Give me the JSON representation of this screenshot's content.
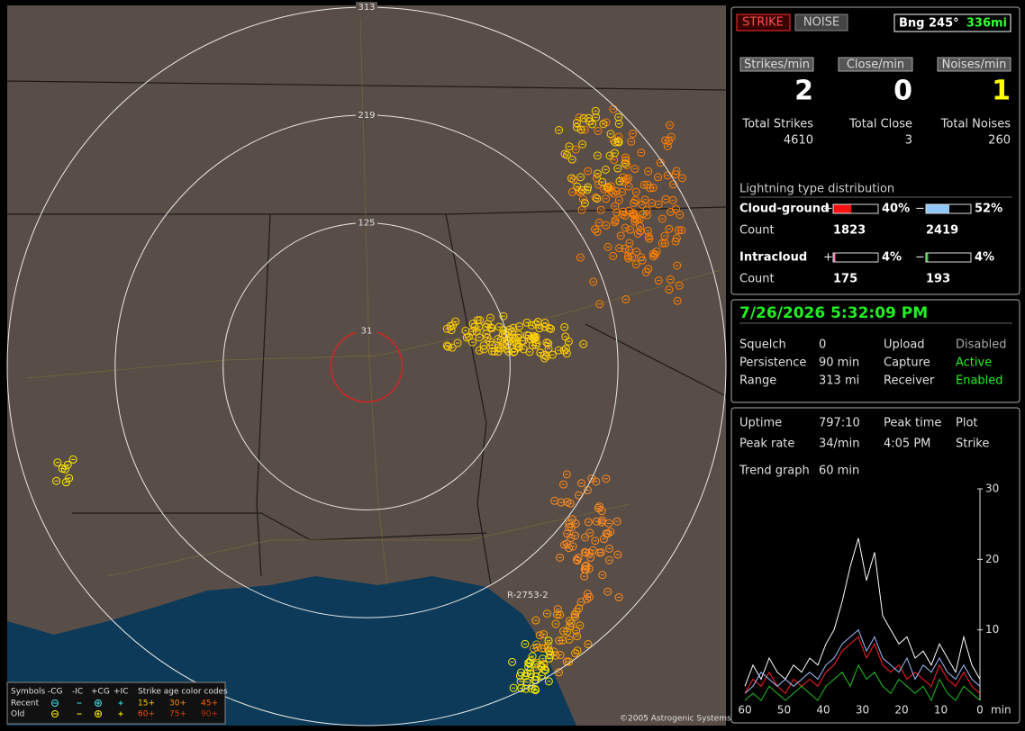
{
  "map": {
    "range_rings": [
      313,
      219,
      125,
      31
    ],
    "route_label": "R-2753-2",
    "legend": {
      "symbols_label": "Symbols",
      "types": [
        "-CG",
        "-IC",
        "+CG",
        "+IC"
      ],
      "age_label": "Strike age color codes",
      "rows": [
        "Recent",
        "Old"
      ],
      "ages": [
        [
          "15+",
          "30+",
          "45+"
        ],
        [
          "60+",
          "75+",
          "90+"
        ]
      ]
    },
    "copyright": "©2005 Astrogenic Systems"
  },
  "header": {
    "strike": "STRIKE",
    "noise": "NOISE",
    "bearing": "Bng 245°",
    "distance": "336mi"
  },
  "rates": [
    {
      "label": "Strikes/min",
      "value": 2,
      "color": "#ffffff",
      "total_label": "Total Strikes",
      "total": 4610
    },
    {
      "label": "Close/min",
      "value": 0,
      "color": "#ffffff",
      "total_label": "Total Close",
      "total": 3
    },
    {
      "label": "Noises/min",
      "value": 1,
      "color": "#ffff00",
      "total_label": "Total Noises",
      "total": 260
    }
  ],
  "distribution": {
    "title": "Lightning type distribution",
    "count_label": "Count",
    "rows": [
      {
        "label": "Cloud-ground",
        "positive": {
          "sign": "+",
          "color": "#ff1010",
          "percent": {
            "value": 40,
            "label": "40%"
          },
          "count": 1823
        },
        "negative": {
          "sign": "−",
          "color": "#8ec8f8",
          "percent": {
            "value": 52,
            "label": "52%"
          },
          "count": 2419
        }
      },
      {
        "label": "Intracloud",
        "positive": {
          "sign": "+",
          "color": "#ff70b0",
          "percent": {
            "value": 4,
            "label": "4%"
          },
          "count": 175
        },
        "negative": {
          "sign": "−",
          "color": "#20d020",
          "percent": {
            "value": 4,
            "label": "4%"
          },
          "count": 193
        }
      }
    ]
  },
  "timestamp": "7/26/2026 5:32:09 PM",
  "settings": [
    [
      "Squelch",
      "0",
      "Upload",
      "Disabled"
    ],
    [
      "Persistence",
      "90 min",
      "Capture",
      "Active"
    ],
    [
      "Range",
      "313 mi",
      "Receiver",
      "Enabled"
    ]
  ],
  "stats": [
    [
      "Uptime",
      "797:10",
      "Peak time",
      "Plot"
    ],
    [
      "Peak rate",
      "34/min",
      "4:05 PM",
      "Strike"
    ]
  ],
  "trend": {
    "label": "Trend graph",
    "window": "60 min",
    "ylim": [
      0,
      30
    ],
    "yticks": [
      10,
      20,
      30
    ],
    "xlim": [
      60,
      0
    ],
    "xticks": [
      60,
      50,
      40,
      30,
      20,
      10,
      0
    ],
    "xlabel": "min",
    "series": [
      {
        "color": "#ffffff",
        "values": [
          2,
          5,
          3,
          6,
          4,
          3,
          5,
          4,
          6,
          5,
          8,
          10,
          14,
          19,
          23,
          17,
          21,
          12,
          10,
          8,
          9,
          6,
          7,
          5,
          8,
          6,
          4,
          9,
          5,
          3
        ]
      },
      {
        "color": "#ff2020",
        "values": [
          1,
          3,
          2,
          4,
          2,
          1,
          3,
          2,
          3,
          2,
          4,
          5,
          7,
          8,
          9,
          6,
          8,
          5,
          4,
          5,
          3,
          4,
          3,
          2,
          5,
          3,
          2,
          4,
          2,
          1
        ]
      },
      {
        "color": "#a0c0ff",
        "values": [
          1,
          2,
          4,
          3,
          2,
          3,
          2,
          3,
          4,
          3,
          5,
          6,
          8,
          9,
          10,
          7,
          9,
          6,
          5,
          4,
          6,
          3,
          5,
          4,
          6,
          4,
          3,
          5,
          3,
          2
        ]
      },
      {
        "color": "#20c020",
        "values": [
          0,
          1,
          0,
          2,
          1,
          0,
          1,
          2,
          1,
          0,
          2,
          3,
          4,
          2,
          5,
          3,
          4,
          2,
          1,
          3,
          2,
          1,
          2,
          0,
          3,
          1,
          0,
          2,
          1,
          0
        ]
      }
    ]
  }
}
